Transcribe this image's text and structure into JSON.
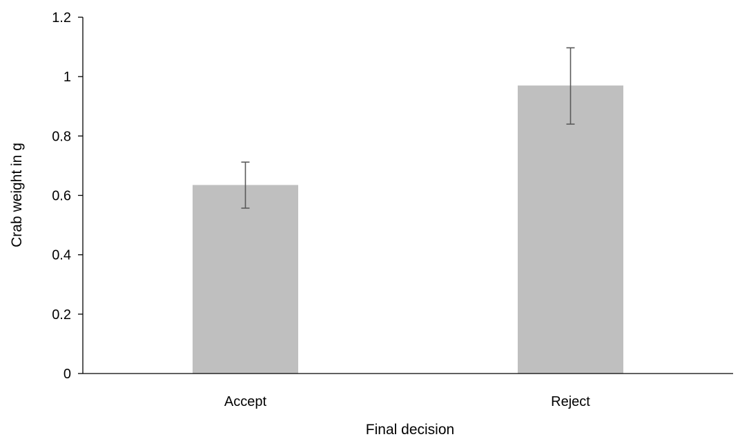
{
  "chart_data": {
    "type": "bar",
    "title": "",
    "xlabel": "Final decision",
    "ylabel": "Crab weight in g",
    "categories": [
      "Accept",
      "Reject"
    ],
    "series": [
      {
        "values": [
          0.635,
          0.97
        ],
        "error_upper": [
          0.712,
          1.097
        ],
        "error_lower": [
          0.557,
          0.84
        ]
      }
    ],
    "ylim": [
      0,
      1.2
    ],
    "yticks": [
      "0",
      "0.2",
      "0.4",
      "0.6",
      "0.8",
      "1",
      "1.2"
    ],
    "ytick_values": [
      0,
      0.2,
      0.4,
      0.6,
      0.8,
      1.0,
      1.2
    ],
    "grid": false,
    "legend": "none",
    "colors": {
      "bar": "#bfbfbf",
      "errorbar": "#595959",
      "axis": "#000000"
    }
  }
}
